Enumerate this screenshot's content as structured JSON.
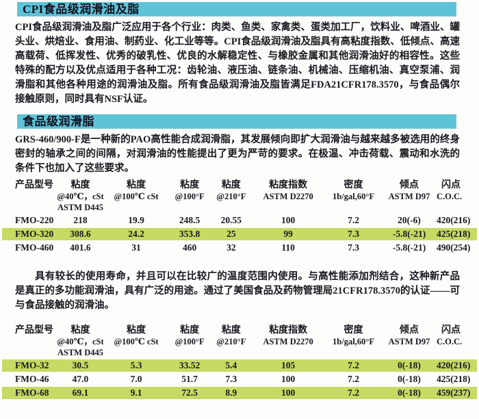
{
  "colors": {
    "section_bar_cyan": "#5ec3d7",
    "row_highlight_green": "#c6da64",
    "text": "#17171f"
  },
  "section1": {
    "title": "CPI食品级润滑油及脂",
    "paragraph": "CPI食品级润滑油及脂广泛应用于各个行业：肉类、鱼类、家禽类、蛋类加工厂，饮料业、啤酒业、罐头业、烘焙业、食用油、制药业、化工业等等。CPI食品级润滑油及脂具有高粘度指数、低倾点、高速高载荷、低挥发性、优秀的破乳性、优良的水解稳定性、与橡胶金属和其他润滑油好的相容性。这些特殊的配方以及优点适用于各种工况：齿轮油、液压油、链条油、机械油、压缩机油、真空泵浦、润滑脂和其他各种用途的润滑油及脂。所有食品级润滑油及脂皆满足FDA21CFR178.3570，与食品偶尔接触原则，同时具有NSF认证。"
  },
  "section2": {
    "title": "食品级润滑脂",
    "paragraph": "GRS-460/900-F是一种新的PAO高性能合成润滑脂，其发展倾向即扩大润滑油与越来越多被选用的终身密封的轴承之间的间隔，对润滑油的性能提出了更为严苛的要求。在极温、冲击荷载、震动和水洗的条件下也加入了这些要求。",
    "paragraph2": "具有较长的使用寿命，并且可以在比较广的温度范围内使用。与高性能添加剂结合，这种新产品是真正的多功能润滑油，具有广泛的用途。通过了美国食品及药物管理局21CFR178.3570的认证——可与食品接触的润滑油。"
  },
  "columns": [
    {
      "l1": "产品型号"
    },
    {
      "l1": "粘度",
      "l2": "@40℃，cSt",
      "l3": "ASTM D445"
    },
    {
      "l1": "粘度",
      "l2": "@100℃ cSt"
    },
    {
      "l1": "粘度",
      "l2": "@100°F"
    },
    {
      "l1": "粘度",
      "l2": "@210°F"
    },
    {
      "l1": "粘度指数",
      "l2": "ASTM D2270"
    },
    {
      "l1": "密度",
      "l2": "1b/gal,60°F"
    },
    {
      "l1": "倾点",
      "l2": "ASTM D97"
    },
    {
      "l1": "闪点",
      "l2": "C.O.C."
    }
  ],
  "table1": {
    "rows": [
      {
        "highlight": false,
        "cells": [
          "FMO-220",
          "218",
          "19.9",
          "248.5",
          "20.55",
          "100",
          "7.2",
          "20(-6)",
          "420(216)"
        ]
      },
      {
        "highlight": true,
        "cells": [
          "FMO-320",
          "308.6",
          "24.2",
          "353.8",
          "25",
          "99",
          "7.3",
          "-5.8(-21)",
          "425(218)"
        ]
      },
      {
        "highlight": false,
        "cells": [
          "FMO-460",
          "401.6",
          "31",
          "460",
          "32",
          "110",
          "7.3",
          "-5.8(-21)",
          "490(254)"
        ]
      }
    ]
  },
  "table2": {
    "rows": [
      {
        "highlight": true,
        "cells": [
          "FMO-32",
          "30.5",
          "5.3",
          "33.52",
          "5.4",
          "105",
          "7.2",
          "0(-18)",
          "420(216)"
        ]
      },
      {
        "highlight": false,
        "cells": [
          "FMO-46",
          "47.0",
          "7.0",
          "51.7",
          "7.3",
          "100",
          "7.2",
          "0(-18)",
          "425(218)"
        ]
      },
      {
        "highlight": true,
        "cells": [
          "FMO-68",
          "69.1",
          "9.1",
          "72.5",
          "8.9",
          "100",
          "7.2",
          "0(-18)",
          "459(237)"
        ]
      }
    ]
  }
}
